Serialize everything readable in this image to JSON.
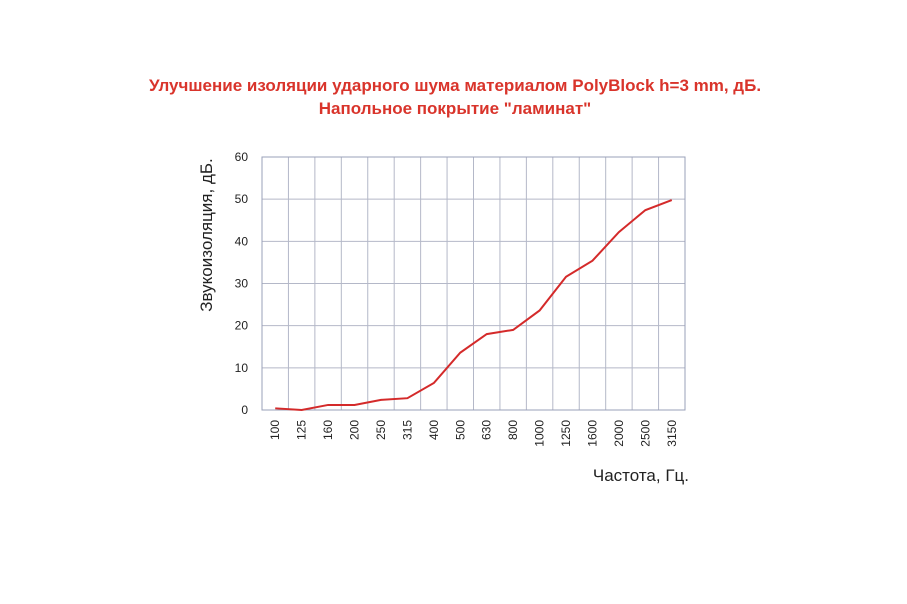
{
  "chart_data": {
    "type": "line",
    "title": "Улучшение изоляции ударного шума материалом  PolyBlock  h=3 mm, дБ.",
    "subtitle": "Напольное покрытие  \"ламинат\"",
    "x_label": "Частота, Гц.",
    "y_label": "Звукоизоляция, дБ.",
    "categories": [
      "100",
      "125",
      "160",
      "200",
      "250",
      "315",
      "400",
      "500",
      "630",
      "800",
      "1000",
      "1250",
      "1600",
      "2000",
      "2500",
      "3150"
    ],
    "series": [
      {
        "name": "PolyBlock",
        "color": "#d42a2a",
        "values": [
          0.4,
          0,
          1.2,
          1.2,
          2.4,
          2.8,
          6.4,
          13.6,
          18,
          19,
          23.6,
          31.6,
          35.4,
          42.2,
          47.4,
          49.8
        ]
      }
    ],
    "ylim": [
      0,
      60
    ],
    "yticks": [
      0,
      10,
      20,
      30,
      40,
      50,
      60
    ],
    "grid": true
  }
}
